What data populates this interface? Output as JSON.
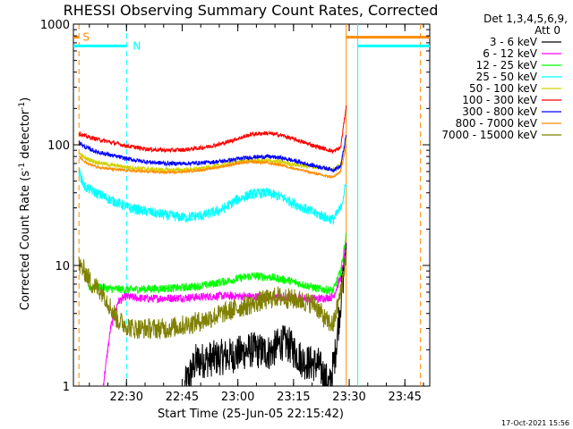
{
  "chart_data": {
    "type": "line",
    "title": "RHESSI Observing Summary Count Rates, Corrected",
    "xlabel": "Start Time (25-Jun-05 22:15:42)",
    "ylabel_main": "Corrected Count Rate (s",
    "ylabel_sup1": "-1",
    "ylabel_mid": " detector",
    "ylabel_sup2": "-1",
    "ylabel_end": ")",
    "yscale": "log",
    "ylim": [
      1,
      1000
    ],
    "xlim_minutes": [
      0,
      96
    ],
    "x_ticks": [
      {
        "minute": 14.3,
        "label": "22:30"
      },
      {
        "minute": 29.3,
        "label": "22:45"
      },
      {
        "minute": 44.3,
        "label": "23:00"
      },
      {
        "minute": 59.3,
        "label": "23:15"
      },
      {
        "minute": 74.3,
        "label": "23:30"
      },
      {
        "minute": 89.3,
        "label": "23:45"
      }
    ],
    "y_ticks": [
      {
        "value": 1,
        "label": "1"
      },
      {
        "value": 10,
        "label": "10"
      },
      {
        "value": 100,
        "label": "100"
      },
      {
        "value": 1000,
        "label": "1000"
      }
    ],
    "legend_header": [
      "Det 1,3,4,5,6,9,",
      "Att 0"
    ],
    "series": [
      {
        "name": "3 - 6 keV",
        "color": "#000000",
        "noise": 0.35,
        "x": [
          30,
          33,
          38,
          43,
          48,
          53,
          56,
          58,
          62,
          66,
          69,
          70.5,
          72,
          73.5
        ],
        "y": [
          1,
          1.6,
          1.7,
          1.8,
          2.0,
          1.9,
          2.3,
          2.2,
          1.6,
          1.5,
          1.0,
          1.8,
          5,
          14
        ]
      },
      {
        "name": "6 - 12 keV",
        "color": "#ff00ff",
        "noise": 0.08,
        "x": [
          8,
          10,
          12,
          14,
          20,
          30,
          40,
          50,
          60,
          66,
          70,
          72,
          73.5
        ],
        "y": [
          1,
          3,
          5.0,
          5.5,
          5.3,
          5.4,
          5.6,
          5.5,
          5.4,
          5.3,
          5.5,
          8,
          15
        ]
      },
      {
        "name": "12 - 25 keV",
        "color": "#00ff00",
        "noise": 0.08,
        "x": [
          4,
          6,
          10,
          15,
          20,
          28,
          35,
          42,
          48,
          53,
          58,
          63,
          66,
          70,
          72,
          73.5
        ],
        "y": [
          6.5,
          6.7,
          6.4,
          6.3,
          6.4,
          6.5,
          6.8,
          7.5,
          8.2,
          8.0,
          7.5,
          6.8,
          6.4,
          6.2,
          9,
          18
        ]
      },
      {
        "name": "25 - 50 keV",
        "color": "#00ffff",
        "noise": 0.1,
        "x": [
          1.5,
          3,
          6,
          10,
          15,
          20,
          25,
          30,
          35,
          40,
          44,
          48,
          52,
          56,
          60,
          64,
          68,
          70,
          72,
          73.5
        ],
        "y": [
          60,
          45,
          40,
          35,
          30,
          28,
          26,
          25,
          26,
          29,
          35,
          39,
          40,
          37,
          32,
          28,
          25,
          24,
          30,
          48
        ]
      },
      {
        "name": "50 - 100 keV",
        "color": "#d2d200",
        "noise": 0.04,
        "x": [
          1.5,
          3,
          6,
          10,
          15,
          20,
          25,
          30,
          35,
          40,
          44,
          48,
          52,
          56,
          60,
          64,
          68,
          70,
          72,
          73.5
        ],
        "y": [
          85,
          78,
          72,
          68,
          65,
          63,
          62,
          62,
          64,
          68,
          72,
          74,
          74,
          72,
          68,
          66,
          64,
          63,
          68,
          110
        ]
      },
      {
        "name": "100 - 300 keV",
        "color": "#ff0000",
        "noise": 0.04,
        "x": [
          1.5,
          3,
          6,
          10,
          15,
          20,
          25,
          30,
          35,
          40,
          44,
          48,
          52,
          56,
          60,
          64,
          68,
          70,
          72,
          73.5
        ],
        "y": [
          125,
          118,
          112,
          105,
          97,
          92,
          90,
          91,
          95,
          102,
          112,
          122,
          125,
          120,
          110,
          100,
          92,
          88,
          95,
          210
        ]
      },
      {
        "name": "300 - 800 keV",
        "color": "#0000ff",
        "noise": 0.04,
        "x": [
          1.5,
          3,
          6,
          10,
          15,
          20,
          25,
          30,
          35,
          40,
          44,
          48,
          52,
          56,
          60,
          64,
          68,
          70,
          72,
          73.5
        ],
        "y": [
          105,
          96,
          88,
          82,
          76,
          72,
          70,
          70,
          71,
          73,
          76,
          79,
          80,
          78,
          73,
          68,
          64,
          62,
          66,
          120
        ]
      },
      {
        "name": "800 - 7000 keV",
        "color": "#ff8c00",
        "noise": 0.025,
        "x": [
          1.5,
          3,
          6,
          10,
          15,
          20,
          25,
          30,
          35,
          40,
          44,
          48,
          52,
          56,
          60,
          64,
          68,
          70,
          72,
          73.5
        ],
        "y": [
          80,
          72,
          66,
          63,
          61,
          60,
          59,
          60,
          62,
          66,
          70,
          72,
          71,
          68,
          63,
          59,
          55,
          54,
          60,
          100
        ]
      },
      {
        "name": "7000 - 15000 keV",
        "color": "#808000",
        "noise": 0.2,
        "x": [
          1.5,
          3,
          5,
          8,
          10,
          12,
          16,
          20,
          25,
          30,
          35,
          40,
          45,
          50,
          55,
          60,
          65,
          68,
          70,
          72,
          73.5
        ],
        "y": [
          10,
          9,
          7,
          6,
          4.5,
          3.5,
          3,
          3,
          3,
          3.2,
          3.5,
          4,
          4.5,
          5,
          5.5,
          5.2,
          4.8,
          3.5,
          3.2,
          6,
          12
        ]
      }
    ],
    "state_bars": [
      {
        "name": "S",
        "color": "#ff8c00",
        "y": 780,
        "segments": [
          [
            -2,
            1.5
          ],
          [
            73.5,
            96
          ]
        ],
        "label": "S",
        "label_x_minute": 2.5
      },
      {
        "name": "N",
        "color": "#00ffff",
        "y": 660,
        "segments": [
          [
            -2,
            14.3
          ],
          [
            76.6,
            96
          ]
        ],
        "label": "N",
        "label_x_minute": 16
      }
    ],
    "vlines": [
      {
        "minute": 1.5,
        "color": "#ff8c00",
        "dashed": true
      },
      {
        "minute": 14.3,
        "color": "#00ffff",
        "dashed": true
      },
      {
        "minute": 73.5,
        "color": "#ff8c00",
        "dashed": false
      },
      {
        "minute": 76.6,
        "color": "#00ffff",
        "dashed": false
      },
      {
        "minute": 93.5,
        "color": "#ff8c00",
        "dashed": true
      }
    ],
    "footer_date": "17-Oct-2021 15:56"
  }
}
